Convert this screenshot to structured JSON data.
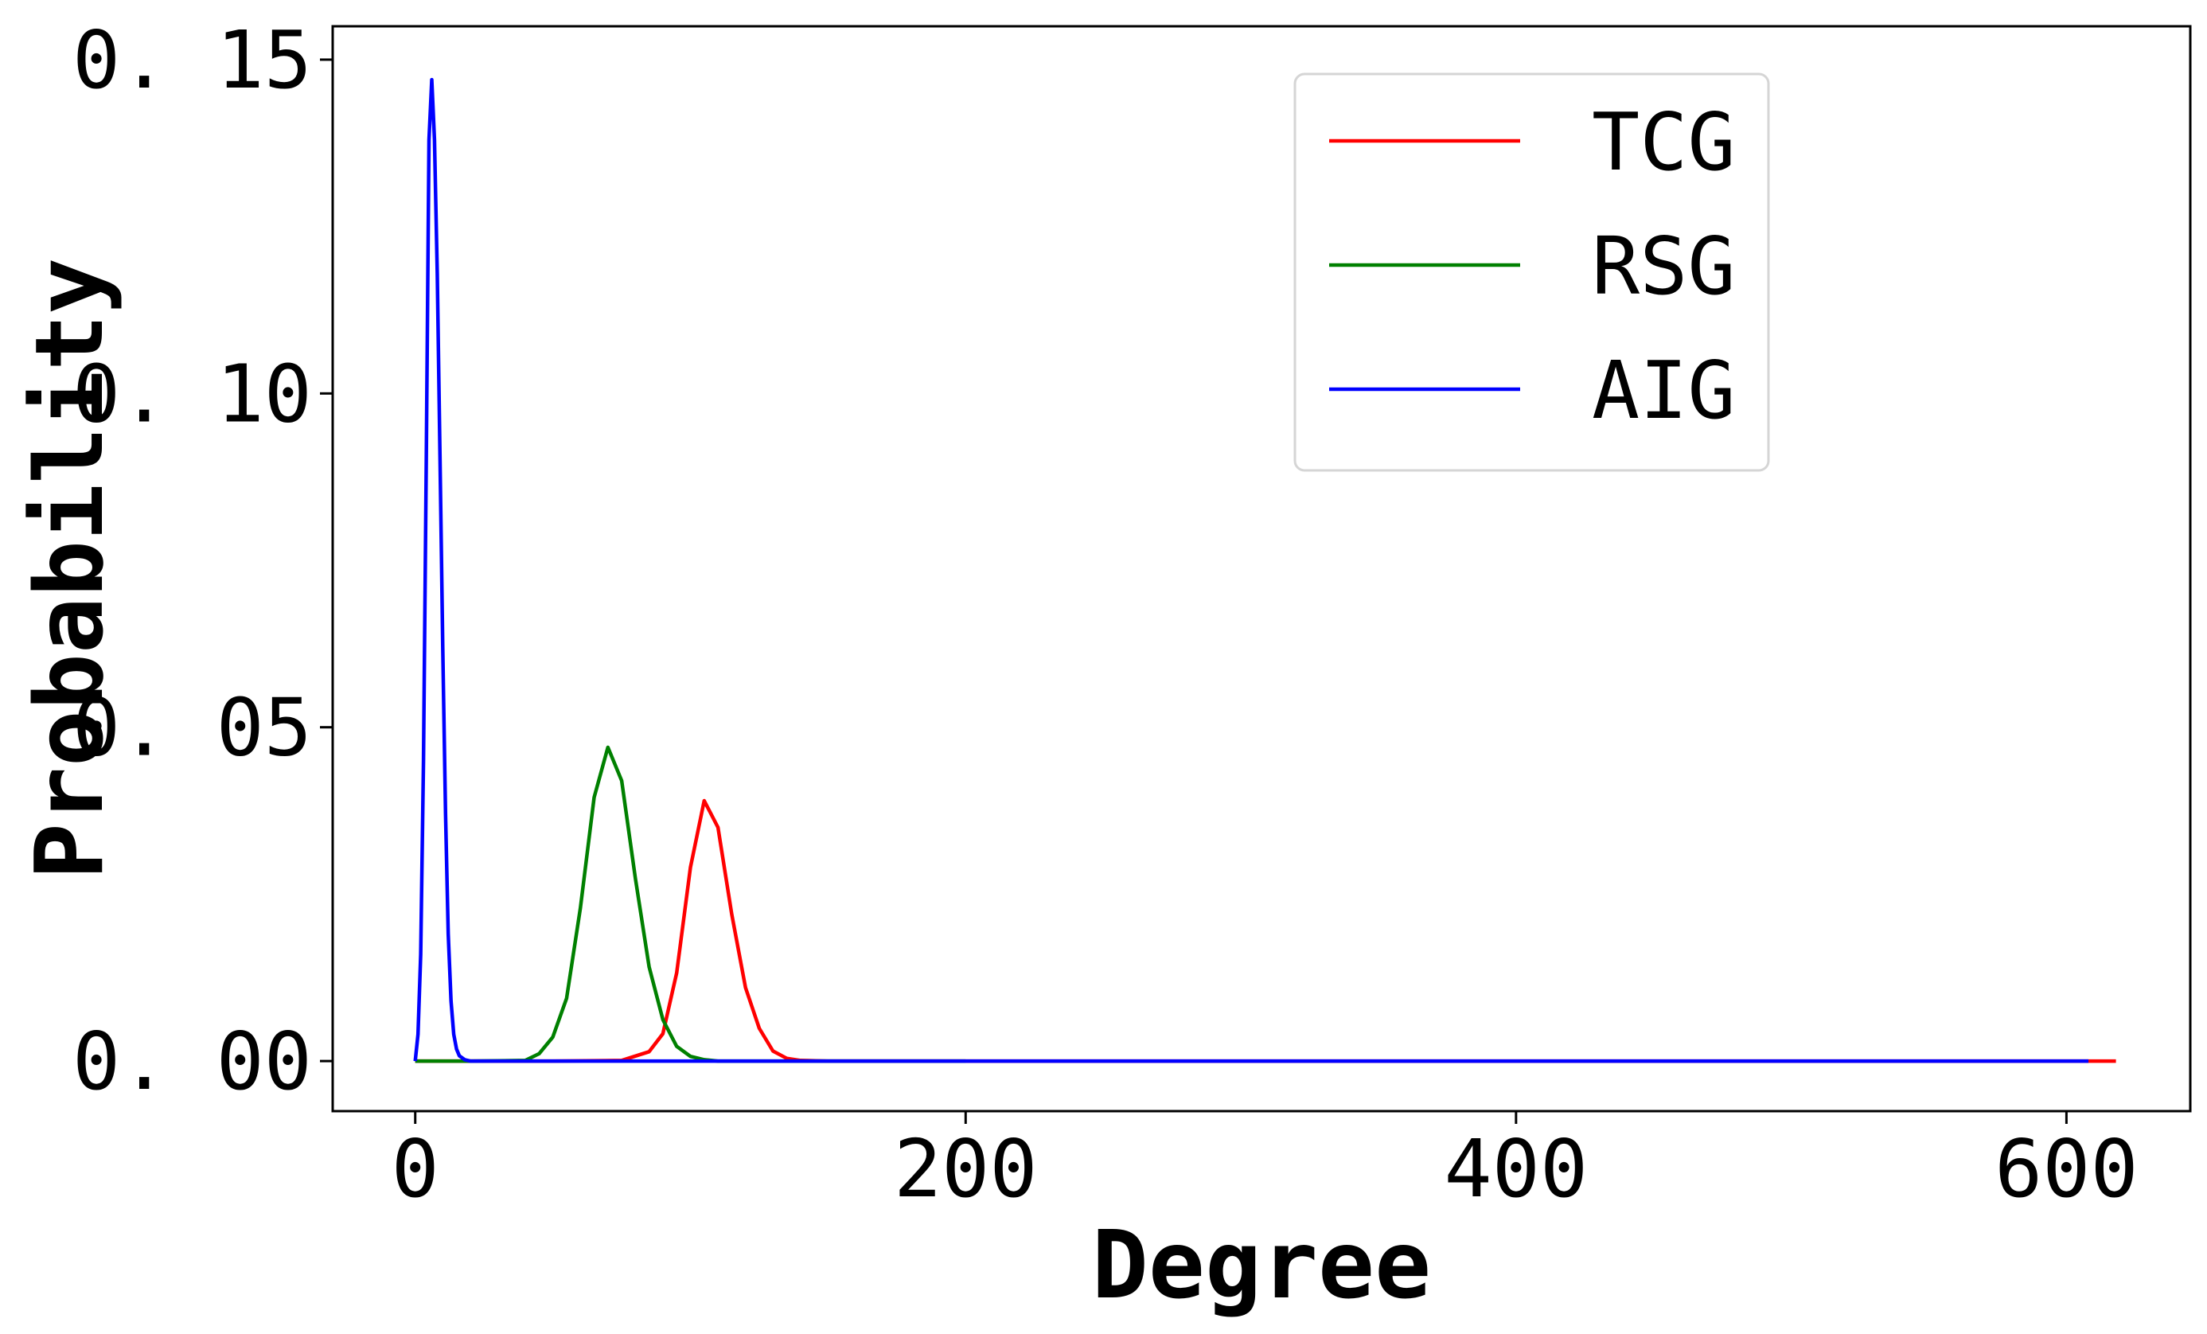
{
  "chart_data": {
    "type": "line",
    "title": "",
    "xlabel": "Degree",
    "ylabel": "Probability",
    "xlim": [
      -30,
      645
    ],
    "ylim": [
      -0.0075,
      0.155
    ],
    "x_ticks": [
      0,
      200,
      400,
      600
    ],
    "y_ticks": [
      0.0,
      0.05,
      0.1,
      0.15
    ],
    "x_tick_labels": [
      "0",
      "200",
      "400",
      "600"
    ],
    "y_tick_labels": [
      "0. 00",
      "0. 05",
      "0. 10",
      "0. 15"
    ],
    "grid": false,
    "legend_position": "upper-right",
    "series": [
      {
        "name": "TCG",
        "color": "#ff0000",
        "x": [
          0,
          50,
          75,
          85,
          90,
          95,
          100,
          105,
          110,
          115,
          120,
          125,
          130,
          135,
          140,
          150,
          200,
          300,
          400,
          500,
          600,
          618
        ],
        "values": [
          0.0,
          0.0,
          0.0001,
          0.0014,
          0.0041,
          0.0132,
          0.029,
          0.039,
          0.035,
          0.022,
          0.011,
          0.0049,
          0.0015,
          0.0004,
          0.0001,
          0.0,
          0.0,
          0.0,
          0.0,
          0.0,
          0.0,
          0.0
        ]
      },
      {
        "name": "RSG",
        "color": "#008000",
        "x": [
          0,
          20,
          40,
          45,
          50,
          55,
          60,
          65,
          70,
          75,
          80,
          85,
          90,
          95,
          100,
          105,
          110,
          120,
          150,
          200
        ],
        "values": [
          0.0,
          0.0,
          0.0001,
          0.0011,
          0.0036,
          0.0094,
          0.0229,
          0.0395,
          0.047,
          0.042,
          0.0273,
          0.0141,
          0.0062,
          0.0022,
          0.0007,
          0.0002,
          0.0,
          0.0,
          0.0,
          0.0
        ]
      },
      {
        "name": "AIG",
        "color": "#0000ff",
        "x": [
          0,
          1,
          2,
          3,
          4,
          5,
          6,
          7,
          8,
          9,
          10,
          11,
          12,
          13,
          14,
          15,
          16,
          18,
          20,
          25,
          50,
          100,
          200,
          300,
          400,
          500,
          608
        ],
        "values": [
          0.0,
          0.004,
          0.016,
          0.045,
          0.09,
          0.138,
          0.147,
          0.138,
          0.118,
          0.09,
          0.062,
          0.037,
          0.019,
          0.009,
          0.004,
          0.0018,
          0.0008,
          0.0002,
          0.0,
          0.0,
          0.0,
          0.0,
          0.0,
          0.0,
          0.0,
          0.0,
          0.0
        ]
      }
    ]
  }
}
